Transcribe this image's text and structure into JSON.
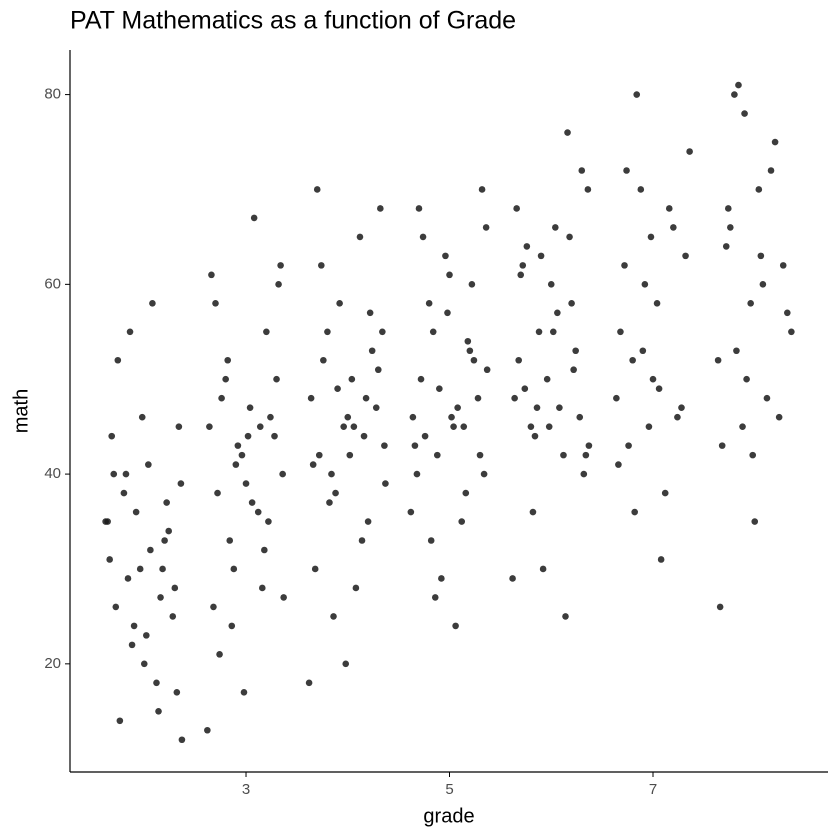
{
  "chart_data": {
    "type": "scatter",
    "title": "PAT Mathematics as a function of Grade",
    "x_label": "grade",
    "y_label": "math",
    "xlim": [
      1.27,
      8.72
    ],
    "ylim": [
      8.6,
      84.7
    ],
    "xticks": [
      3,
      5,
      7
    ],
    "yticks": [
      20,
      40,
      60,
      80
    ],
    "grid": false,
    "series": [
      {
        "color": "#1a1a1a",
        "x": [
          1.64,
          1.72,
          1.8,
          1.88,
          1.96,
          2.04,
          2.12,
          2.2,
          2.28,
          2.36,
          1.68,
          1.76,
          1.84,
          1.92,
          2,
          2.08,
          2.16,
          2.24,
          2.32,
          1.66,
          1.74,
          1.82,
          1.9,
          1.98,
          2.06,
          2.14,
          2.22,
          2.3,
          2.37,
          1.7,
          1.86,
          2.02,
          2.18,
          2.34,
          1.62,
          2.64,
          2.72,
          2.8,
          2.88,
          2.96,
          3.04,
          3.12,
          3.2,
          3.28,
          3.36,
          2.68,
          2.76,
          2.84,
          2.92,
          3,
          3.08,
          3.16,
          3.24,
          3.32,
          2.66,
          2.74,
          2.82,
          2.9,
          2.98,
          3.06,
          3.14,
          3.22,
          3.3,
          3.37,
          2.7,
          2.86,
          3.02,
          3.18,
          3.34,
          2.62,
          3.64,
          3.72,
          3.8,
          3.88,
          3.96,
          4.04,
          4.12,
          4.2,
          4.28,
          4.36,
          3.68,
          3.76,
          3.84,
          3.92,
          4,
          4.08,
          4.16,
          4.24,
          4.32,
          3.66,
          3.74,
          3.82,
          3.9,
          3.98,
          4.06,
          4.14,
          4.22,
          4.3,
          4.37,
          3.7,
          3.86,
          4.02,
          4.18,
          4.34,
          3.62,
          4.64,
          4.72,
          4.8,
          4.88,
          4.96,
          5.04,
          5.12,
          5.2,
          5.28,
          5.36,
          4.68,
          4.76,
          4.84,
          4.92,
          5,
          5.08,
          5.16,
          5.24,
          5.32,
          4.66,
          4.74,
          4.82,
          4.9,
          4.98,
          5.06,
          5.14,
          5.22,
          5.3,
          5.37,
          4.7,
          4.86,
          5.02,
          5.18,
          5.34,
          4.62,
          5.64,
          5.72,
          5.8,
          5.88,
          5.96,
          6.04,
          6.12,
          6.2,
          6.28,
          6.36,
          5.68,
          5.76,
          5.84,
          5.92,
          6,
          6.08,
          6.16,
          6.24,
          6.32,
          5.66,
          5.74,
          5.82,
          5.9,
          5.98,
          6.06,
          6.14,
          6.22,
          6.3,
          6.37,
          5.7,
          5.86,
          6.02,
          6.18,
          6.34,
          5.62,
          6.64,
          6.72,
          6.8,
          6.88,
          6.96,
          7.04,
          7.12,
          7.2,
          7.28,
          7.36,
          6.68,
          6.76,
          6.84,
          6.92,
          7,
          7.08,
          7.16,
          7.24,
          7.32,
          6.66,
          6.74,
          6.82,
          6.9,
          6.98,
          7.06,
          7.64,
          7.72,
          7.8,
          7.88,
          7.96,
          8.04,
          8.12,
          8.2,
          8.28,
          8.36,
          7.68,
          7.76,
          7.84,
          7.92,
          8,
          8.08,
          8.16,
          8.24,
          8.32,
          7.66,
          7.74,
          7.82,
          7.9,
          7.98,
          8.06
        ],
        "values": [
          35,
          26,
          38,
          22,
          30,
          41,
          18,
          33,
          25,
          39,
          44,
          14,
          29,
          36,
          20,
          58,
          27,
          34,
          17,
          31,
          52,
          40,
          24,
          46,
          32,
          15,
          37,
          28,
          12,
          40,
          55,
          23,
          30,
          45,
          35,
          45,
          38,
          50,
          30,
          42,
          47,
          36,
          55,
          44,
          40,
          26,
          48,
          33,
          43,
          39,
          67,
          28,
          46,
          60,
          61,
          21,
          52,
          41,
          17,
          37,
          45,
          35,
          50,
          27,
          58,
          24,
          44,
          32,
          62,
          13,
          48,
          42,
          55,
          38,
          45,
          50,
          65,
          35,
          47,
          43,
          30,
          52,
          40,
          58,
          46,
          28,
          44,
          53,
          68,
          41,
          62,
          37,
          49,
          20,
          45,
          33,
          57,
          51,
          39,
          70,
          25,
          42,
          48,
          55,
          18,
          46,
          50,
          58,
          42,
          63,
          45,
          35,
          53,
          48,
          66,
          40,
          44,
          55,
          29,
          61,
          47,
          38,
          52,
          70,
          43,
          65,
          33,
          49,
          57,
          24,
          45,
          60,
          42,
          51,
          68,
          27,
          46,
          54,
          40,
          36,
          48,
          62,
          45,
          55,
          50,
          66,
          42,
          58,
          46,
          70,
          52,
          64,
          44,
          30,
          60,
          47,
          76,
          53,
          40,
          68,
          49,
          36,
          63,
          45,
          57,
          25,
          51,
          72,
          43,
          61,
          47,
          55,
          65,
          42,
          29,
          48,
          62,
          52,
          70,
          45,
          58,
          38,
          66,
          47,
          74,
          55,
          43,
          80,
          60,
          50,
          31,
          68,
          46,
          63,
          41,
          72,
          36,
          53,
          65,
          49,
          52,
          64,
          80,
          45,
          58,
          70,
          48,
          75,
          62,
          55,
          43,
          66,
          81,
          50,
          35,
          60,
          72,
          46,
          57,
          26,
          68,
          53,
          78,
          42,
          63
        ]
      }
    ]
  }
}
